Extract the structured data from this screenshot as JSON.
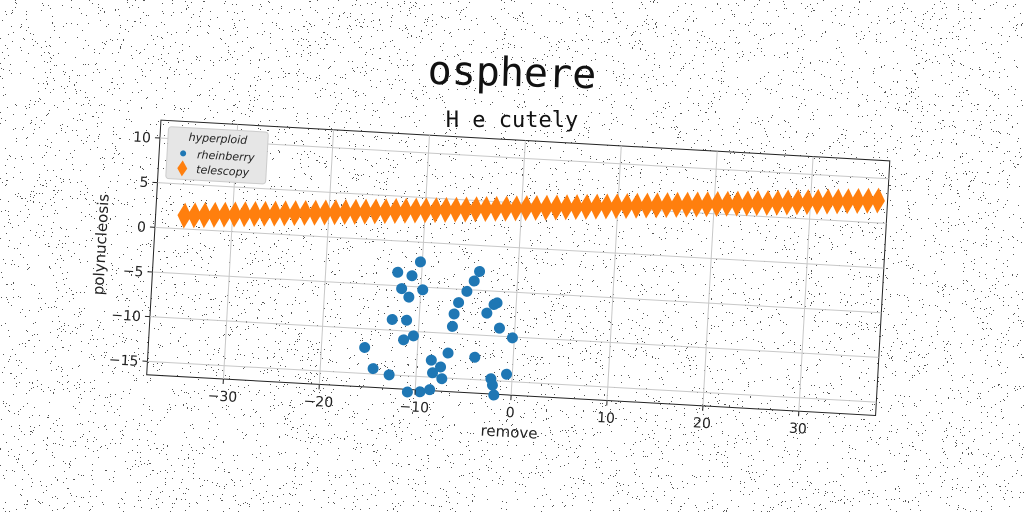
{
  "chart_data": {
    "type": "scatter",
    "title": "osphere",
    "subtitle": "H e cutely",
    "xlabel": "remove",
    "ylabel": "polynucleosis",
    "xlim": [
      -38,
      38
    ],
    "ylim": [
      -16.5,
      12
    ],
    "xticks": [
      -30,
      -20,
      -10,
      0,
      10,
      20,
      30
    ],
    "yticks": [
      10,
      5,
      0,
      -5,
      -10,
      -15
    ],
    "grid": true,
    "legend": {
      "title": "hyperploid",
      "placement": "top-left"
    },
    "series": [
      {
        "name": "rheinberry",
        "marker": "circle",
        "color": "#1f77b4",
        "points": [
          [
            -10.2,
            -2.2
          ],
          [
            -12.5,
            -3.5
          ],
          [
            -11,
            -3.8
          ],
          [
            -12,
            -5.3
          ],
          [
            -11.2,
            -6.2
          ],
          [
            -9.8,
            -5.3
          ],
          [
            -11.3,
            -8.8
          ],
          [
            -12.8,
            -8.8
          ],
          [
            -10.5,
            -10.5
          ],
          [
            -11.5,
            -11
          ],
          [
            -15.5,
            -12.1
          ],
          [
            -14.5,
            -14.4
          ],
          [
            -12.8,
            -15
          ],
          [
            -10.8,
            -16.8
          ],
          [
            -9.5,
            -16.7
          ],
          [
            -8.5,
            -16.4
          ],
          [
            -7.3,
            -15.1
          ],
          [
            -8.3,
            -14.5
          ],
          [
            -7.5,
            -13.8
          ],
          [
            -8.5,
            -13.1
          ],
          [
            -6.8,
            -12.2
          ],
          [
            -6.5,
            -9.2
          ],
          [
            -6.4,
            -7.8
          ],
          [
            -6,
            -6.5
          ],
          [
            -5.2,
            -5.2
          ],
          [
            -4.5,
            -4
          ],
          [
            -4,
            -2.9
          ],
          [
            -2,
            -6.3
          ],
          [
            -2.3,
            -6.5
          ],
          [
            -3,
            -7.5
          ],
          [
            -1.6,
            -9.1
          ],
          [
            -0.2,
            -10.1
          ],
          [
            -4,
            -12.5
          ],
          [
            -2.2,
            -14.8
          ],
          [
            -2,
            -15.5
          ],
          [
            -1.8,
            -16.6
          ],
          [
            -0.6,
            -14.2
          ]
        ]
      },
      {
        "name": "telescopy",
        "marker": "diamond",
        "color": "#ff7f0e",
        "x_start": -35,
        "x_end": 37,
        "y_start": 1.5,
        "y_end": 7.5,
        "count": 70
      }
    ]
  }
}
